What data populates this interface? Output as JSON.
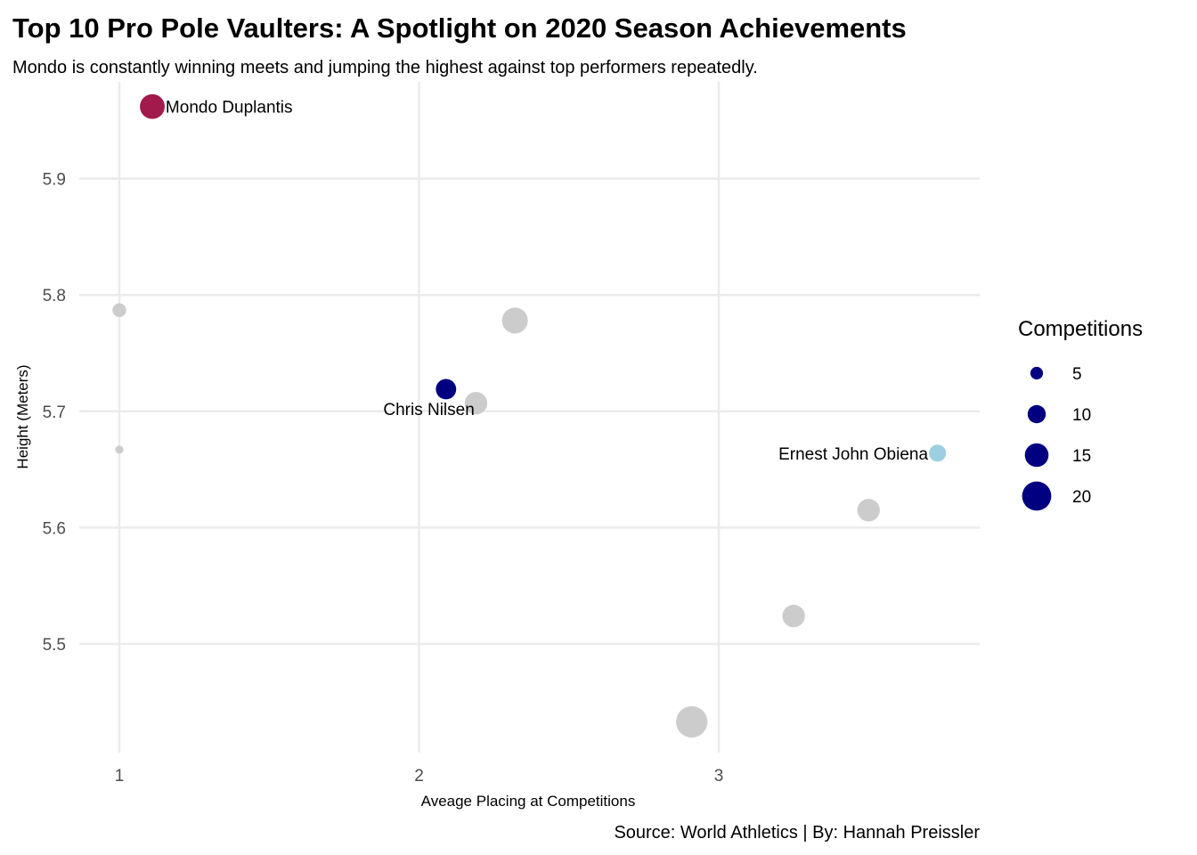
{
  "chart_data": {
    "type": "scatter",
    "title": "Top 10 Pro Pole Vaulters: A Spotlight on 2020 Season Achievements",
    "subtitle": "Mondo is constantly winning meets and jumping the highest against top performers repeatedly.",
    "xlabel": "Aveage Placing at Competitions",
    "ylabel": "Height (Meters)",
    "caption": "Source: World Athletics | By: Hannah Preissler",
    "xlim": [
      1,
      3.88
    ],
    "ylim": [
      5.41,
      6.0
    ],
    "x_ticks": [
      1,
      2,
      3
    ],
    "x_tick_labels": [
      "1",
      "2",
      "3"
    ],
    "y_ticks": [
      5.5,
      5.6,
      5.7,
      5.8,
      5.9
    ],
    "y_tick_labels": [
      "5.5",
      "5.6",
      "5.7",
      "5.8",
      "5.9"
    ],
    "grid": true,
    "size_legend": {
      "title": "Competitions",
      "position": "right",
      "color": "#000080",
      "entries": [
        {
          "label": "5",
          "value": 5
        },
        {
          "label": "10",
          "value": 10
        },
        {
          "label": "15",
          "value": 15
        },
        {
          "label": "20",
          "value": 20
        }
      ]
    },
    "points": [
      {
        "x": 1.11,
        "y": 5.962,
        "size": 16,
        "color": "#a11a4b",
        "label": "Mondo Duplantis",
        "label_side": "right"
      },
      {
        "x": 1.0,
        "y": 5.787,
        "size": 6,
        "color": "#cccccc",
        "label": ""
      },
      {
        "x": 1.0,
        "y": 5.667,
        "size": 1,
        "color": "#cccccc",
        "label": ""
      },
      {
        "x": 2.32,
        "y": 5.778,
        "size": 17,
        "color": "#cccccc",
        "label": ""
      },
      {
        "x": 2.09,
        "y": 5.719,
        "size": 12,
        "color": "#000080",
        "label": "Chris Nilsen",
        "label_side": "below-left"
      },
      {
        "x": 2.19,
        "y": 5.707,
        "size": 14,
        "color": "#cccccc",
        "label": ""
      },
      {
        "x": 3.73,
        "y": 5.664,
        "size": 9,
        "color": "#9ecfe0",
        "label": "Ernest John Obiena",
        "label_side": "left"
      },
      {
        "x": 3.5,
        "y": 5.615,
        "size": 14,
        "color": "#cccccc",
        "label": ""
      },
      {
        "x": 3.25,
        "y": 5.524,
        "size": 14,
        "color": "#cccccc",
        "label": ""
      },
      {
        "x": 2.91,
        "y": 5.433,
        "size": 22,
        "color": "#cccccc",
        "label": ""
      }
    ]
  }
}
